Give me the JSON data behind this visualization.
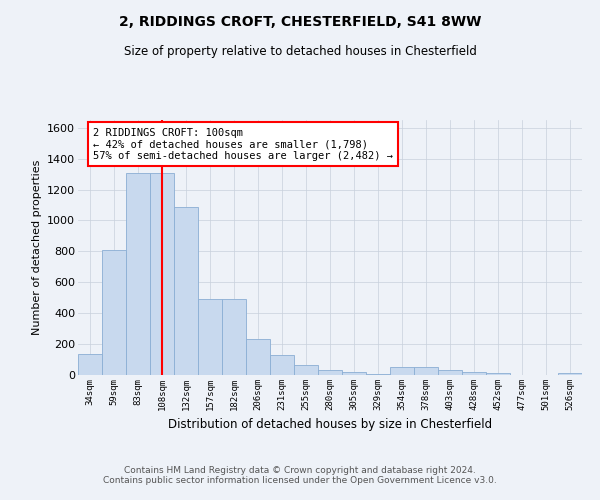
{
  "title": "2, RIDDINGS CROFT, CHESTERFIELD, S41 8WW",
  "subtitle": "Size of property relative to detached houses in Chesterfield",
  "xlabel": "Distribution of detached houses by size in Chesterfield",
  "ylabel": "Number of detached properties",
  "footer_line1": "Contains HM Land Registry data © Crown copyright and database right 2024.",
  "footer_line2": "Contains public sector information licensed under the Open Government Licence v3.0.",
  "categories": [
    "34sqm",
    "59sqm",
    "83sqm",
    "108sqm",
    "132sqm",
    "157sqm",
    "182sqm",
    "206sqm",
    "231sqm",
    "255sqm",
    "280sqm",
    "305sqm",
    "329sqm",
    "354sqm",
    "378sqm",
    "403sqm",
    "428sqm",
    "452sqm",
    "477sqm",
    "501sqm",
    "526sqm"
  ],
  "values": [
    135,
    810,
    1310,
    1310,
    1090,
    490,
    490,
    230,
    130,
    65,
    35,
    20,
    5,
    55,
    55,
    30,
    20,
    10,
    0,
    0,
    10
  ],
  "bar_color": "#c8d9ee",
  "bar_edge_color": "#8baed4",
  "grid_color": "#c8d0dc",
  "vline_color": "red",
  "vline_x_index": 3,
  "annotation_text": "2 RIDDINGS CROFT: 100sqm\n← 42% of detached houses are smaller (1,798)\n57% of semi-detached houses are larger (2,482) →",
  "ylim": [
    0,
    1650
  ],
  "yticks": [
    0,
    200,
    400,
    600,
    800,
    1000,
    1200,
    1400,
    1600
  ],
  "background_color": "#eef2f8"
}
